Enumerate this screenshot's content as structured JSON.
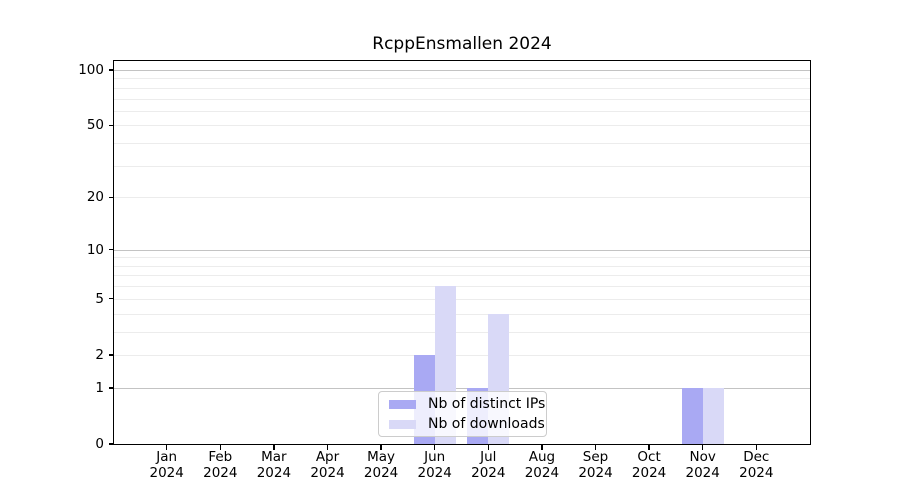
{
  "chart_data": {
    "type": "bar",
    "title": "RcppEnsmallen 2024",
    "categories": [
      "Jan 2024",
      "Feb 2024",
      "Mar 2024",
      "Apr 2024",
      "May 2024",
      "Jun 2024",
      "Jul 2024",
      "Aug 2024",
      "Sep 2024",
      "Oct 2024",
      "Nov 2024",
      "Dec 2024"
    ],
    "x_tick_months": [
      "Jan",
      "Feb",
      "Mar",
      "Apr",
      "May",
      "Jun",
      "Jul",
      "Aug",
      "Sep",
      "Oct",
      "Nov",
      "Dec"
    ],
    "x_tick_year": "2024",
    "series": [
      {
        "name": "Nb of distinct IPs",
        "color": "#a9a9f3",
        "values": [
          0,
          0,
          0,
          0,
          0,
          2,
          1,
          0,
          0,
          0,
          1,
          0
        ]
      },
      {
        "name": "Nb of downloads",
        "color": "#d9d9f7",
        "values": [
          0,
          0,
          0,
          0,
          0,
          6,
          4,
          0,
          0,
          0,
          1,
          0
        ]
      }
    ],
    "xlabel": "",
    "ylabel": "",
    "y_ticks": [
      0,
      1,
      2,
      5,
      10,
      20,
      50,
      100
    ],
    "ylim": [
      0,
      112
    ],
    "yscale": "log1p",
    "grid": true,
    "legend_position": "lower center",
    "colors": {
      "major_grid": "#c3c3c3",
      "minor_grid": "#ececec",
      "axis": "#000000",
      "text": "#000000",
      "legend_border": "#cccccc"
    }
  }
}
